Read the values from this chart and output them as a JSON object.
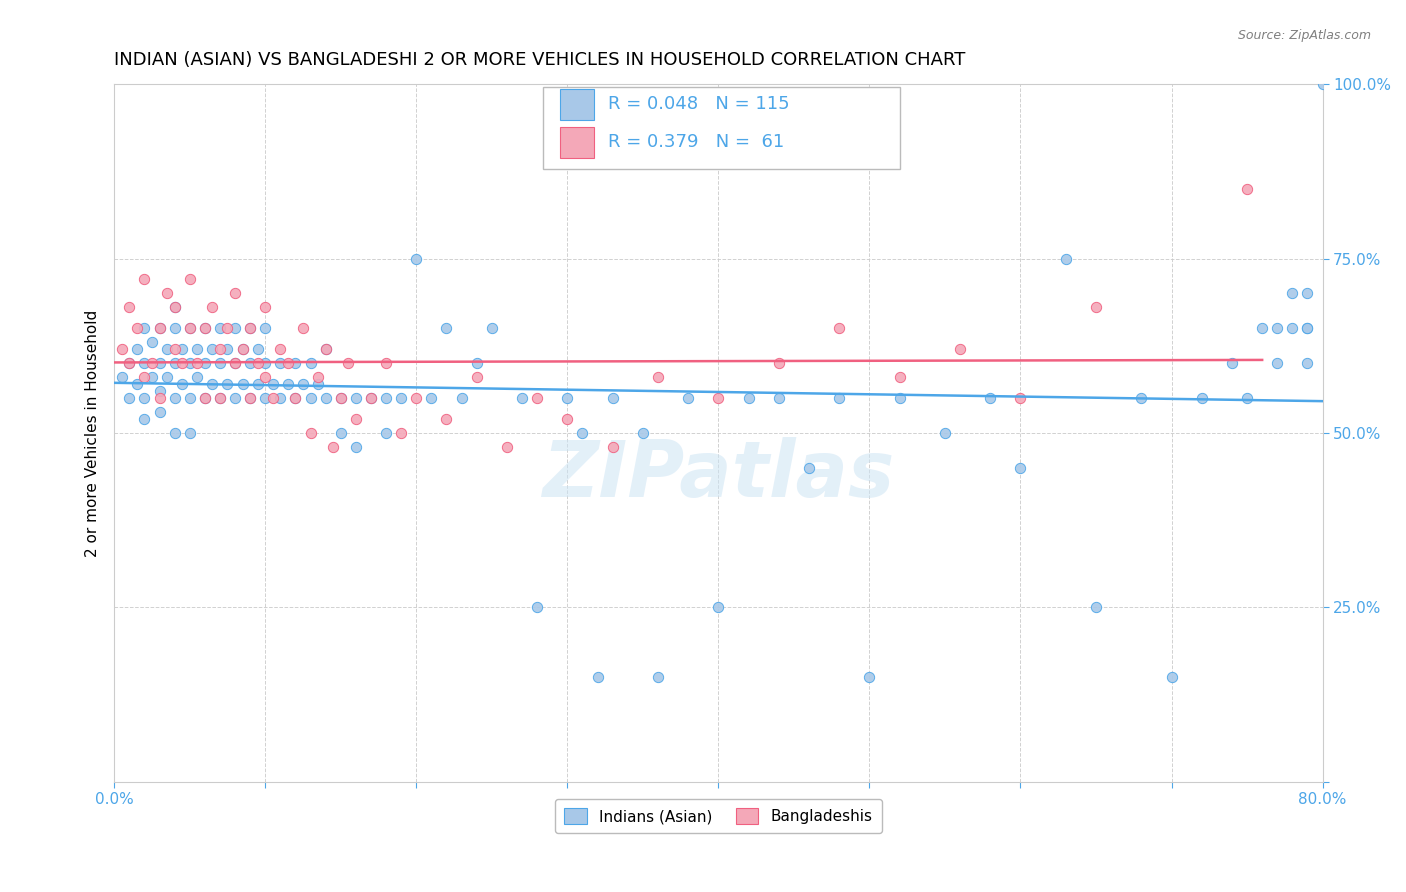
{
  "title": "INDIAN (ASIAN) VS BANGLADESHI 2 OR MORE VEHICLES IN HOUSEHOLD CORRELATION CHART",
  "source": "Source: ZipAtlas.com",
  "ylabel": "2 or more Vehicles in Household",
  "xlim": [
    0.0,
    0.8
  ],
  "ylim": [
    0.0,
    1.0
  ],
  "xticks": [
    0.0,
    0.1,
    0.2,
    0.3,
    0.4,
    0.5,
    0.6,
    0.7,
    0.8
  ],
  "xticklabels": [
    "0.0%",
    "",
    "",
    "",
    "",
    "",
    "",
    "",
    "80.0%"
  ],
  "yticks": [
    0.0,
    0.25,
    0.5,
    0.75,
    1.0
  ],
  "yticklabels": [
    "",
    "25.0%",
    "50.0%",
    "75.0%",
    "100.0%"
  ],
  "indian_color": "#a8c8e8",
  "bangladeshi_color": "#f4a8b8",
  "indian_line_color": "#4da6e8",
  "bangladeshi_line_color": "#f06080",
  "legend_R1": "0.048",
  "legend_N1": "115",
  "legend_R2": "0.379",
  "legend_N2": "61",
  "label1": "Indians (Asian)",
  "label2": "Bangladeshis",
  "watermark": "ZIPatlas",
  "background_color": "#ffffff",
  "grid_color": "#cccccc",
  "tick_color": "#4da6e8",
  "title_fontsize": 13,
  "axis_label_fontsize": 11,
  "tick_fontsize": 11,
  "indian_x": [
    0.005,
    0.01,
    0.01,
    0.015,
    0.015,
    0.02,
    0.02,
    0.02,
    0.02,
    0.025,
    0.025,
    0.03,
    0.03,
    0.03,
    0.03,
    0.035,
    0.035,
    0.04,
    0.04,
    0.04,
    0.04,
    0.04,
    0.045,
    0.045,
    0.05,
    0.05,
    0.05,
    0.05,
    0.055,
    0.055,
    0.06,
    0.06,
    0.06,
    0.065,
    0.065,
    0.07,
    0.07,
    0.07,
    0.075,
    0.075,
    0.08,
    0.08,
    0.08,
    0.085,
    0.085,
    0.09,
    0.09,
    0.09,
    0.095,
    0.095,
    0.1,
    0.1,
    0.1,
    0.105,
    0.11,
    0.11,
    0.115,
    0.12,
    0.12,
    0.125,
    0.13,
    0.13,
    0.135,
    0.14,
    0.14,
    0.15,
    0.15,
    0.16,
    0.16,
    0.17,
    0.18,
    0.18,
    0.19,
    0.2,
    0.21,
    0.22,
    0.23,
    0.24,
    0.25,
    0.27,
    0.28,
    0.3,
    0.31,
    0.32,
    0.33,
    0.35,
    0.36,
    0.38,
    0.4,
    0.42,
    0.44,
    0.46,
    0.48,
    0.5,
    0.52,
    0.55,
    0.58,
    0.6,
    0.63,
    0.65,
    0.68,
    0.7,
    0.72,
    0.74,
    0.75,
    0.76,
    0.77,
    0.77,
    0.78,
    0.78,
    0.79,
    0.79,
    0.79,
    0.79,
    0.8
  ],
  "indian_y": [
    0.58,
    0.6,
    0.55,
    0.62,
    0.57,
    0.6,
    0.55,
    0.65,
    0.52,
    0.58,
    0.63,
    0.56,
    0.6,
    0.65,
    0.53,
    0.58,
    0.62,
    0.55,
    0.6,
    0.65,
    0.5,
    0.68,
    0.57,
    0.62,
    0.55,
    0.6,
    0.65,
    0.5,
    0.58,
    0.62,
    0.55,
    0.6,
    0.65,
    0.57,
    0.62,
    0.55,
    0.6,
    0.65,
    0.57,
    0.62,
    0.55,
    0.6,
    0.65,
    0.57,
    0.62,
    0.55,
    0.6,
    0.65,
    0.57,
    0.62,
    0.55,
    0.6,
    0.65,
    0.57,
    0.55,
    0.6,
    0.57,
    0.55,
    0.6,
    0.57,
    0.55,
    0.6,
    0.57,
    0.55,
    0.62,
    0.55,
    0.5,
    0.55,
    0.48,
    0.55,
    0.55,
    0.5,
    0.55,
    0.75,
    0.55,
    0.65,
    0.55,
    0.6,
    0.65,
    0.55,
    0.25,
    0.55,
    0.5,
    0.15,
    0.55,
    0.5,
    0.15,
    0.55,
    0.25,
    0.55,
    0.55,
    0.45,
    0.55,
    0.15,
    0.55,
    0.5,
    0.55,
    0.45,
    0.75,
    0.25,
    0.55,
    0.15,
    0.55,
    0.6,
    0.55,
    0.65,
    0.6,
    0.65,
    0.65,
    0.7,
    0.6,
    0.65,
    0.7,
    0.65,
    1.0
  ],
  "bangladeshi_x": [
    0.005,
    0.01,
    0.01,
    0.015,
    0.02,
    0.02,
    0.025,
    0.03,
    0.03,
    0.035,
    0.04,
    0.04,
    0.045,
    0.05,
    0.05,
    0.055,
    0.06,
    0.06,
    0.065,
    0.07,
    0.07,
    0.075,
    0.08,
    0.08,
    0.085,
    0.09,
    0.09,
    0.095,
    0.1,
    0.1,
    0.105,
    0.11,
    0.115,
    0.12,
    0.125,
    0.13,
    0.135,
    0.14,
    0.145,
    0.15,
    0.155,
    0.16,
    0.17,
    0.18,
    0.19,
    0.2,
    0.22,
    0.24,
    0.26,
    0.28,
    0.3,
    0.33,
    0.36,
    0.4,
    0.44,
    0.48,
    0.52,
    0.56,
    0.6,
    0.65,
    0.75
  ],
  "bangladeshi_y": [
    0.62,
    0.6,
    0.68,
    0.65,
    0.58,
    0.72,
    0.6,
    0.65,
    0.55,
    0.7,
    0.62,
    0.68,
    0.6,
    0.65,
    0.72,
    0.6,
    0.65,
    0.55,
    0.68,
    0.62,
    0.55,
    0.65,
    0.6,
    0.7,
    0.62,
    0.55,
    0.65,
    0.6,
    0.58,
    0.68,
    0.55,
    0.62,
    0.6,
    0.55,
    0.65,
    0.5,
    0.58,
    0.62,
    0.48,
    0.55,
    0.6,
    0.52,
    0.55,
    0.6,
    0.5,
    0.55,
    0.52,
    0.58,
    0.48,
    0.55,
    0.52,
    0.48,
    0.58,
    0.55,
    0.6,
    0.65,
    0.58,
    0.62,
    0.55,
    0.68,
    0.85
  ]
}
